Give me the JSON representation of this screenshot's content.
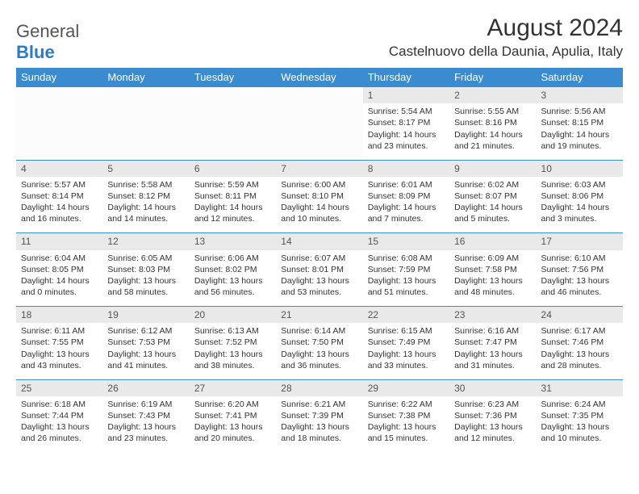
{
  "logo": {
    "text1": "General",
    "text2": "Blue"
  },
  "title": "August 2024",
  "location": "Castelnuovo della Daunia, Apulia, Italy",
  "colors": {
    "header_bg": "#3b8bd0",
    "header_text": "#ffffff",
    "daynum_bg": "#e9e9e9",
    "border": "#3b8bd0",
    "text": "#333333",
    "logo_blue": "#2a7dc4"
  },
  "day_headers": [
    "Sunday",
    "Monday",
    "Tuesday",
    "Wednesday",
    "Thursday",
    "Friday",
    "Saturday"
  ],
  "weeks": [
    [
      null,
      null,
      null,
      null,
      {
        "n": "1",
        "sr": "Sunrise: 5:54 AM",
        "ss": "Sunset: 8:17 PM",
        "d1": "Daylight: 14 hours",
        "d2": "and 23 minutes."
      },
      {
        "n": "2",
        "sr": "Sunrise: 5:55 AM",
        "ss": "Sunset: 8:16 PM",
        "d1": "Daylight: 14 hours",
        "d2": "and 21 minutes."
      },
      {
        "n": "3",
        "sr": "Sunrise: 5:56 AM",
        "ss": "Sunset: 8:15 PM",
        "d1": "Daylight: 14 hours",
        "d2": "and 19 minutes."
      }
    ],
    [
      {
        "n": "4",
        "sr": "Sunrise: 5:57 AM",
        "ss": "Sunset: 8:14 PM",
        "d1": "Daylight: 14 hours",
        "d2": "and 16 minutes."
      },
      {
        "n": "5",
        "sr": "Sunrise: 5:58 AM",
        "ss": "Sunset: 8:12 PM",
        "d1": "Daylight: 14 hours",
        "d2": "and 14 minutes."
      },
      {
        "n": "6",
        "sr": "Sunrise: 5:59 AM",
        "ss": "Sunset: 8:11 PM",
        "d1": "Daylight: 14 hours",
        "d2": "and 12 minutes."
      },
      {
        "n": "7",
        "sr": "Sunrise: 6:00 AM",
        "ss": "Sunset: 8:10 PM",
        "d1": "Daylight: 14 hours",
        "d2": "and 10 minutes."
      },
      {
        "n": "8",
        "sr": "Sunrise: 6:01 AM",
        "ss": "Sunset: 8:09 PM",
        "d1": "Daylight: 14 hours",
        "d2": "and 7 minutes."
      },
      {
        "n": "9",
        "sr": "Sunrise: 6:02 AM",
        "ss": "Sunset: 8:07 PM",
        "d1": "Daylight: 14 hours",
        "d2": "and 5 minutes."
      },
      {
        "n": "10",
        "sr": "Sunrise: 6:03 AM",
        "ss": "Sunset: 8:06 PM",
        "d1": "Daylight: 14 hours",
        "d2": "and 3 minutes."
      }
    ],
    [
      {
        "n": "11",
        "sr": "Sunrise: 6:04 AM",
        "ss": "Sunset: 8:05 PM",
        "d1": "Daylight: 14 hours",
        "d2": "and 0 minutes."
      },
      {
        "n": "12",
        "sr": "Sunrise: 6:05 AM",
        "ss": "Sunset: 8:03 PM",
        "d1": "Daylight: 13 hours",
        "d2": "and 58 minutes."
      },
      {
        "n": "13",
        "sr": "Sunrise: 6:06 AM",
        "ss": "Sunset: 8:02 PM",
        "d1": "Daylight: 13 hours",
        "d2": "and 56 minutes."
      },
      {
        "n": "14",
        "sr": "Sunrise: 6:07 AM",
        "ss": "Sunset: 8:01 PM",
        "d1": "Daylight: 13 hours",
        "d2": "and 53 minutes."
      },
      {
        "n": "15",
        "sr": "Sunrise: 6:08 AM",
        "ss": "Sunset: 7:59 PM",
        "d1": "Daylight: 13 hours",
        "d2": "and 51 minutes."
      },
      {
        "n": "16",
        "sr": "Sunrise: 6:09 AM",
        "ss": "Sunset: 7:58 PM",
        "d1": "Daylight: 13 hours",
        "d2": "and 48 minutes."
      },
      {
        "n": "17",
        "sr": "Sunrise: 6:10 AM",
        "ss": "Sunset: 7:56 PM",
        "d1": "Daylight: 13 hours",
        "d2": "and 46 minutes."
      }
    ],
    [
      {
        "n": "18",
        "sr": "Sunrise: 6:11 AM",
        "ss": "Sunset: 7:55 PM",
        "d1": "Daylight: 13 hours",
        "d2": "and 43 minutes."
      },
      {
        "n": "19",
        "sr": "Sunrise: 6:12 AM",
        "ss": "Sunset: 7:53 PM",
        "d1": "Daylight: 13 hours",
        "d2": "and 41 minutes."
      },
      {
        "n": "20",
        "sr": "Sunrise: 6:13 AM",
        "ss": "Sunset: 7:52 PM",
        "d1": "Daylight: 13 hours",
        "d2": "and 38 minutes."
      },
      {
        "n": "21",
        "sr": "Sunrise: 6:14 AM",
        "ss": "Sunset: 7:50 PM",
        "d1": "Daylight: 13 hours",
        "d2": "and 36 minutes."
      },
      {
        "n": "22",
        "sr": "Sunrise: 6:15 AM",
        "ss": "Sunset: 7:49 PM",
        "d1": "Daylight: 13 hours",
        "d2": "and 33 minutes."
      },
      {
        "n": "23",
        "sr": "Sunrise: 6:16 AM",
        "ss": "Sunset: 7:47 PM",
        "d1": "Daylight: 13 hours",
        "d2": "and 31 minutes."
      },
      {
        "n": "24",
        "sr": "Sunrise: 6:17 AM",
        "ss": "Sunset: 7:46 PM",
        "d1": "Daylight: 13 hours",
        "d2": "and 28 minutes."
      }
    ],
    [
      {
        "n": "25",
        "sr": "Sunrise: 6:18 AM",
        "ss": "Sunset: 7:44 PM",
        "d1": "Daylight: 13 hours",
        "d2": "and 26 minutes."
      },
      {
        "n": "26",
        "sr": "Sunrise: 6:19 AM",
        "ss": "Sunset: 7:43 PM",
        "d1": "Daylight: 13 hours",
        "d2": "and 23 minutes."
      },
      {
        "n": "27",
        "sr": "Sunrise: 6:20 AM",
        "ss": "Sunset: 7:41 PM",
        "d1": "Daylight: 13 hours",
        "d2": "and 20 minutes."
      },
      {
        "n": "28",
        "sr": "Sunrise: 6:21 AM",
        "ss": "Sunset: 7:39 PM",
        "d1": "Daylight: 13 hours",
        "d2": "and 18 minutes."
      },
      {
        "n": "29",
        "sr": "Sunrise: 6:22 AM",
        "ss": "Sunset: 7:38 PM",
        "d1": "Daylight: 13 hours",
        "d2": "and 15 minutes."
      },
      {
        "n": "30",
        "sr": "Sunrise: 6:23 AM",
        "ss": "Sunset: 7:36 PM",
        "d1": "Daylight: 13 hours",
        "d2": "and 12 minutes."
      },
      {
        "n": "31",
        "sr": "Sunrise: 6:24 AM",
        "ss": "Sunset: 7:35 PM",
        "d1": "Daylight: 13 hours",
        "d2": "and 10 minutes."
      }
    ]
  ]
}
